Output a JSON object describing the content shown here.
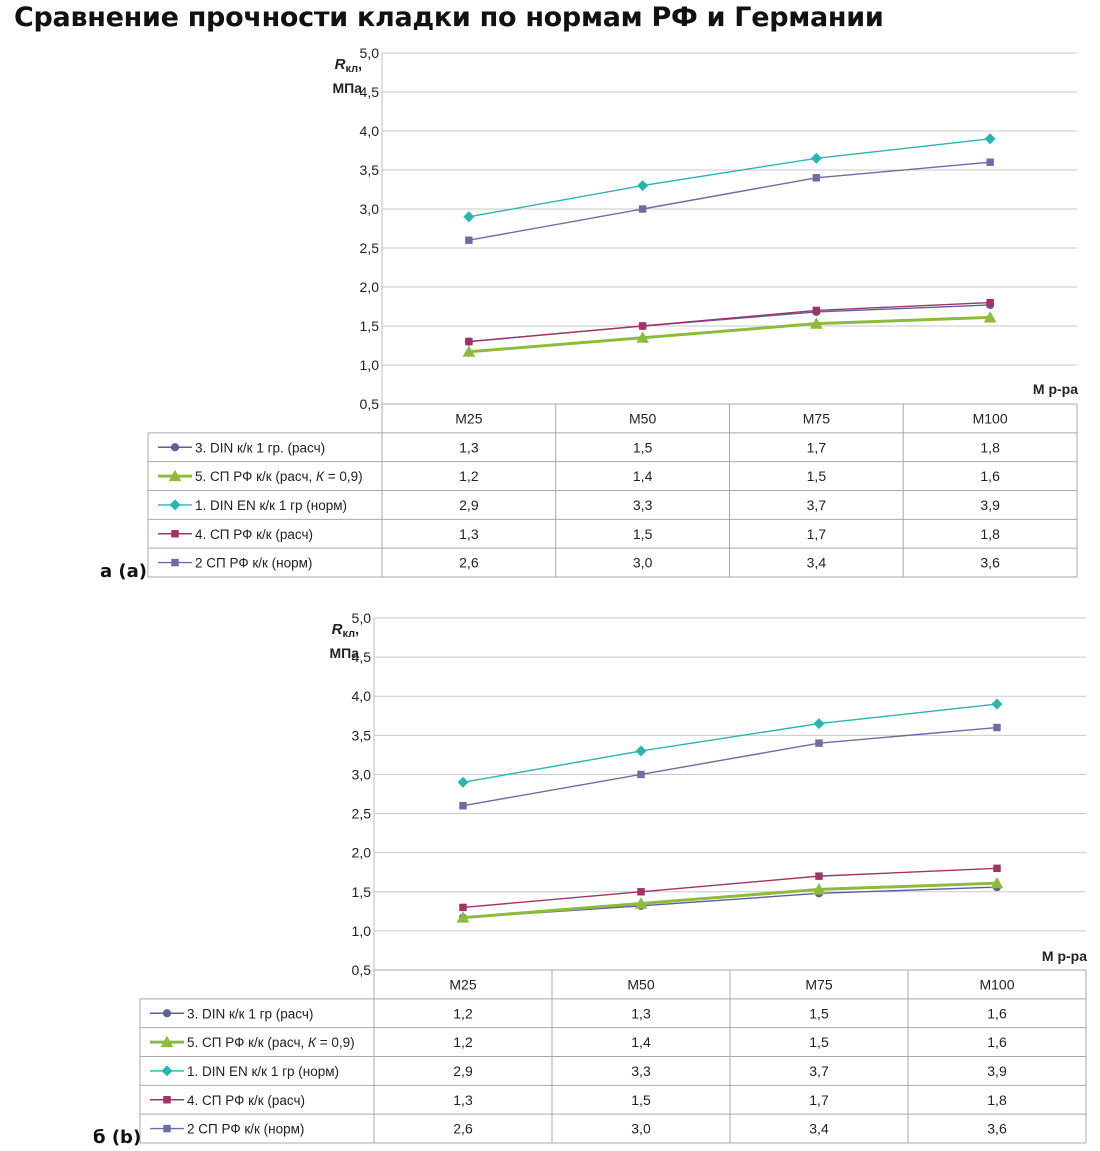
{
  "title": "Сравнение прочности кладки по нормам РФ и Германии",
  "y_label_main": "R",
  "y_label_sub": "кл",
  "y_label_comma": ",",
  "y_unit": "МПа",
  "x_label": "М р-ра",
  "colors": {
    "series1_teal": "#2ab5b1",
    "series2_slate": "#6c6ea3",
    "series3_navy": "#5b5f9a",
    "series4_magenta": "#a03469",
    "series5_green": "#8dbb3c"
  },
  "chart_data": [
    {
      "panel": "a (a)",
      "type": "line",
      "y_tick_labels": [
        "0,5",
        "1,0",
        "1,5",
        "2,0",
        "2,5",
        "3,0",
        "3,5",
        "4,0",
        "4,5",
        "5,0"
      ],
      "ylim": [
        0.5,
        5.0
      ],
      "grid": true,
      "categories": [
        "М25",
        "М50",
        "М75",
        "М100"
      ],
      "series": [
        {
          "key": "s3",
          "name": "3. DIN к/к 1 гр. (расч)",
          "color": "#5b5f9a",
          "marker": "circle",
          "width": 1.4,
          "values": [
            1.3,
            1.5,
            1.68,
            1.77
          ],
          "table": [
            "1,3",
            "1,5",
            "1,7",
            "1,8"
          ]
        },
        {
          "key": "s5",
          "name": "5. СП РФ к/к (расч, К = 0,9)",
          "color": "#8dbb3c",
          "marker": "triangle",
          "width": 3,
          "values": [
            1.17,
            1.35,
            1.53,
            1.61
          ],
          "table": [
            "1,2",
            "1,4",
            "1,5",
            "1,6"
          ]
        },
        {
          "key": "s1",
          "name": "1. DIN  EN к/к 1 гр  (норм)",
          "color": "#2ab5b1",
          "marker": "diamond",
          "width": 1.4,
          "values": [
            2.9,
            3.3,
            3.65,
            3.9
          ],
          "table": [
            "2,9",
            "3,3",
            "3,7",
            "3,9"
          ]
        },
        {
          "key": "s4",
          "name": "4. СП РФ к/к (расч)",
          "color": "#a03469",
          "marker": "square",
          "width": 1.4,
          "values": [
            1.3,
            1.5,
            1.7,
            1.8
          ],
          "table": [
            "1,3",
            "1,5",
            "1,7",
            "1,8"
          ]
        },
        {
          "key": "s2",
          "name": "2  СП РФ к/к (норм)",
          "color": "#6c6ea3",
          "marker": "square",
          "width": 1.4,
          "values": [
            2.6,
            3.0,
            3.4,
            3.6
          ],
          "table": [
            "2,6",
            "3,0",
            "3,4",
            "3,6"
          ]
        }
      ]
    },
    {
      "panel": "б (b)",
      "type": "line",
      "y_tick_labels": [
        "0,5",
        "1,0",
        "1,5",
        "2,0",
        "2,5",
        "3,0",
        "3,5",
        "4,0",
        "4,5",
        "5,0"
      ],
      "ylim": [
        0.5,
        5.0
      ],
      "grid": true,
      "categories": [
        "М25",
        "М50",
        "М75",
        "М100"
      ],
      "series": [
        {
          "key": "s3",
          "name": "3. DIN к/к 1 гр (расч)",
          "color": "#5b5f9a",
          "marker": "circle",
          "width": 1.4,
          "values": [
            1.17,
            1.32,
            1.48,
            1.56
          ],
          "table": [
            "1,2",
            "1,3",
            "1,5",
            "1,6"
          ]
        },
        {
          "key": "s5",
          "name": "5. СП РФ к/к (расч, К = 0,9)",
          "color": "#8dbb3c",
          "marker": "triangle",
          "width": 3,
          "values": [
            1.17,
            1.35,
            1.53,
            1.61
          ],
          "table": [
            "1,2",
            "1,4",
            "1,5",
            "1,6"
          ]
        },
        {
          "key": "s1",
          "name": "1. DIN  EN к/к 1 гр  (норм)",
          "color": "#2ab5b1",
          "marker": "diamond",
          "width": 1.4,
          "values": [
            2.9,
            3.3,
            3.65,
            3.9
          ],
          "table": [
            "2,9",
            "3,3",
            "3,7",
            "3,9"
          ]
        },
        {
          "key": "s4",
          "name": "4. СП РФ к/к (расч)",
          "color": "#a03469",
          "marker": "square",
          "width": 1.4,
          "values": [
            1.3,
            1.5,
            1.7,
            1.8
          ],
          "table": [
            "1,3",
            "1,5",
            "1,7",
            "1,8"
          ]
        },
        {
          "key": "s2",
          "name": "2  СП РФ к/к (норм)",
          "color": "#6c6ea3",
          "marker": "square",
          "width": 1.4,
          "values": [
            2.6,
            3.0,
            3.4,
            3.6
          ],
          "table": [
            "2,6",
            "3,0",
            "3,4",
            "3,6"
          ]
        }
      ]
    }
  ]
}
